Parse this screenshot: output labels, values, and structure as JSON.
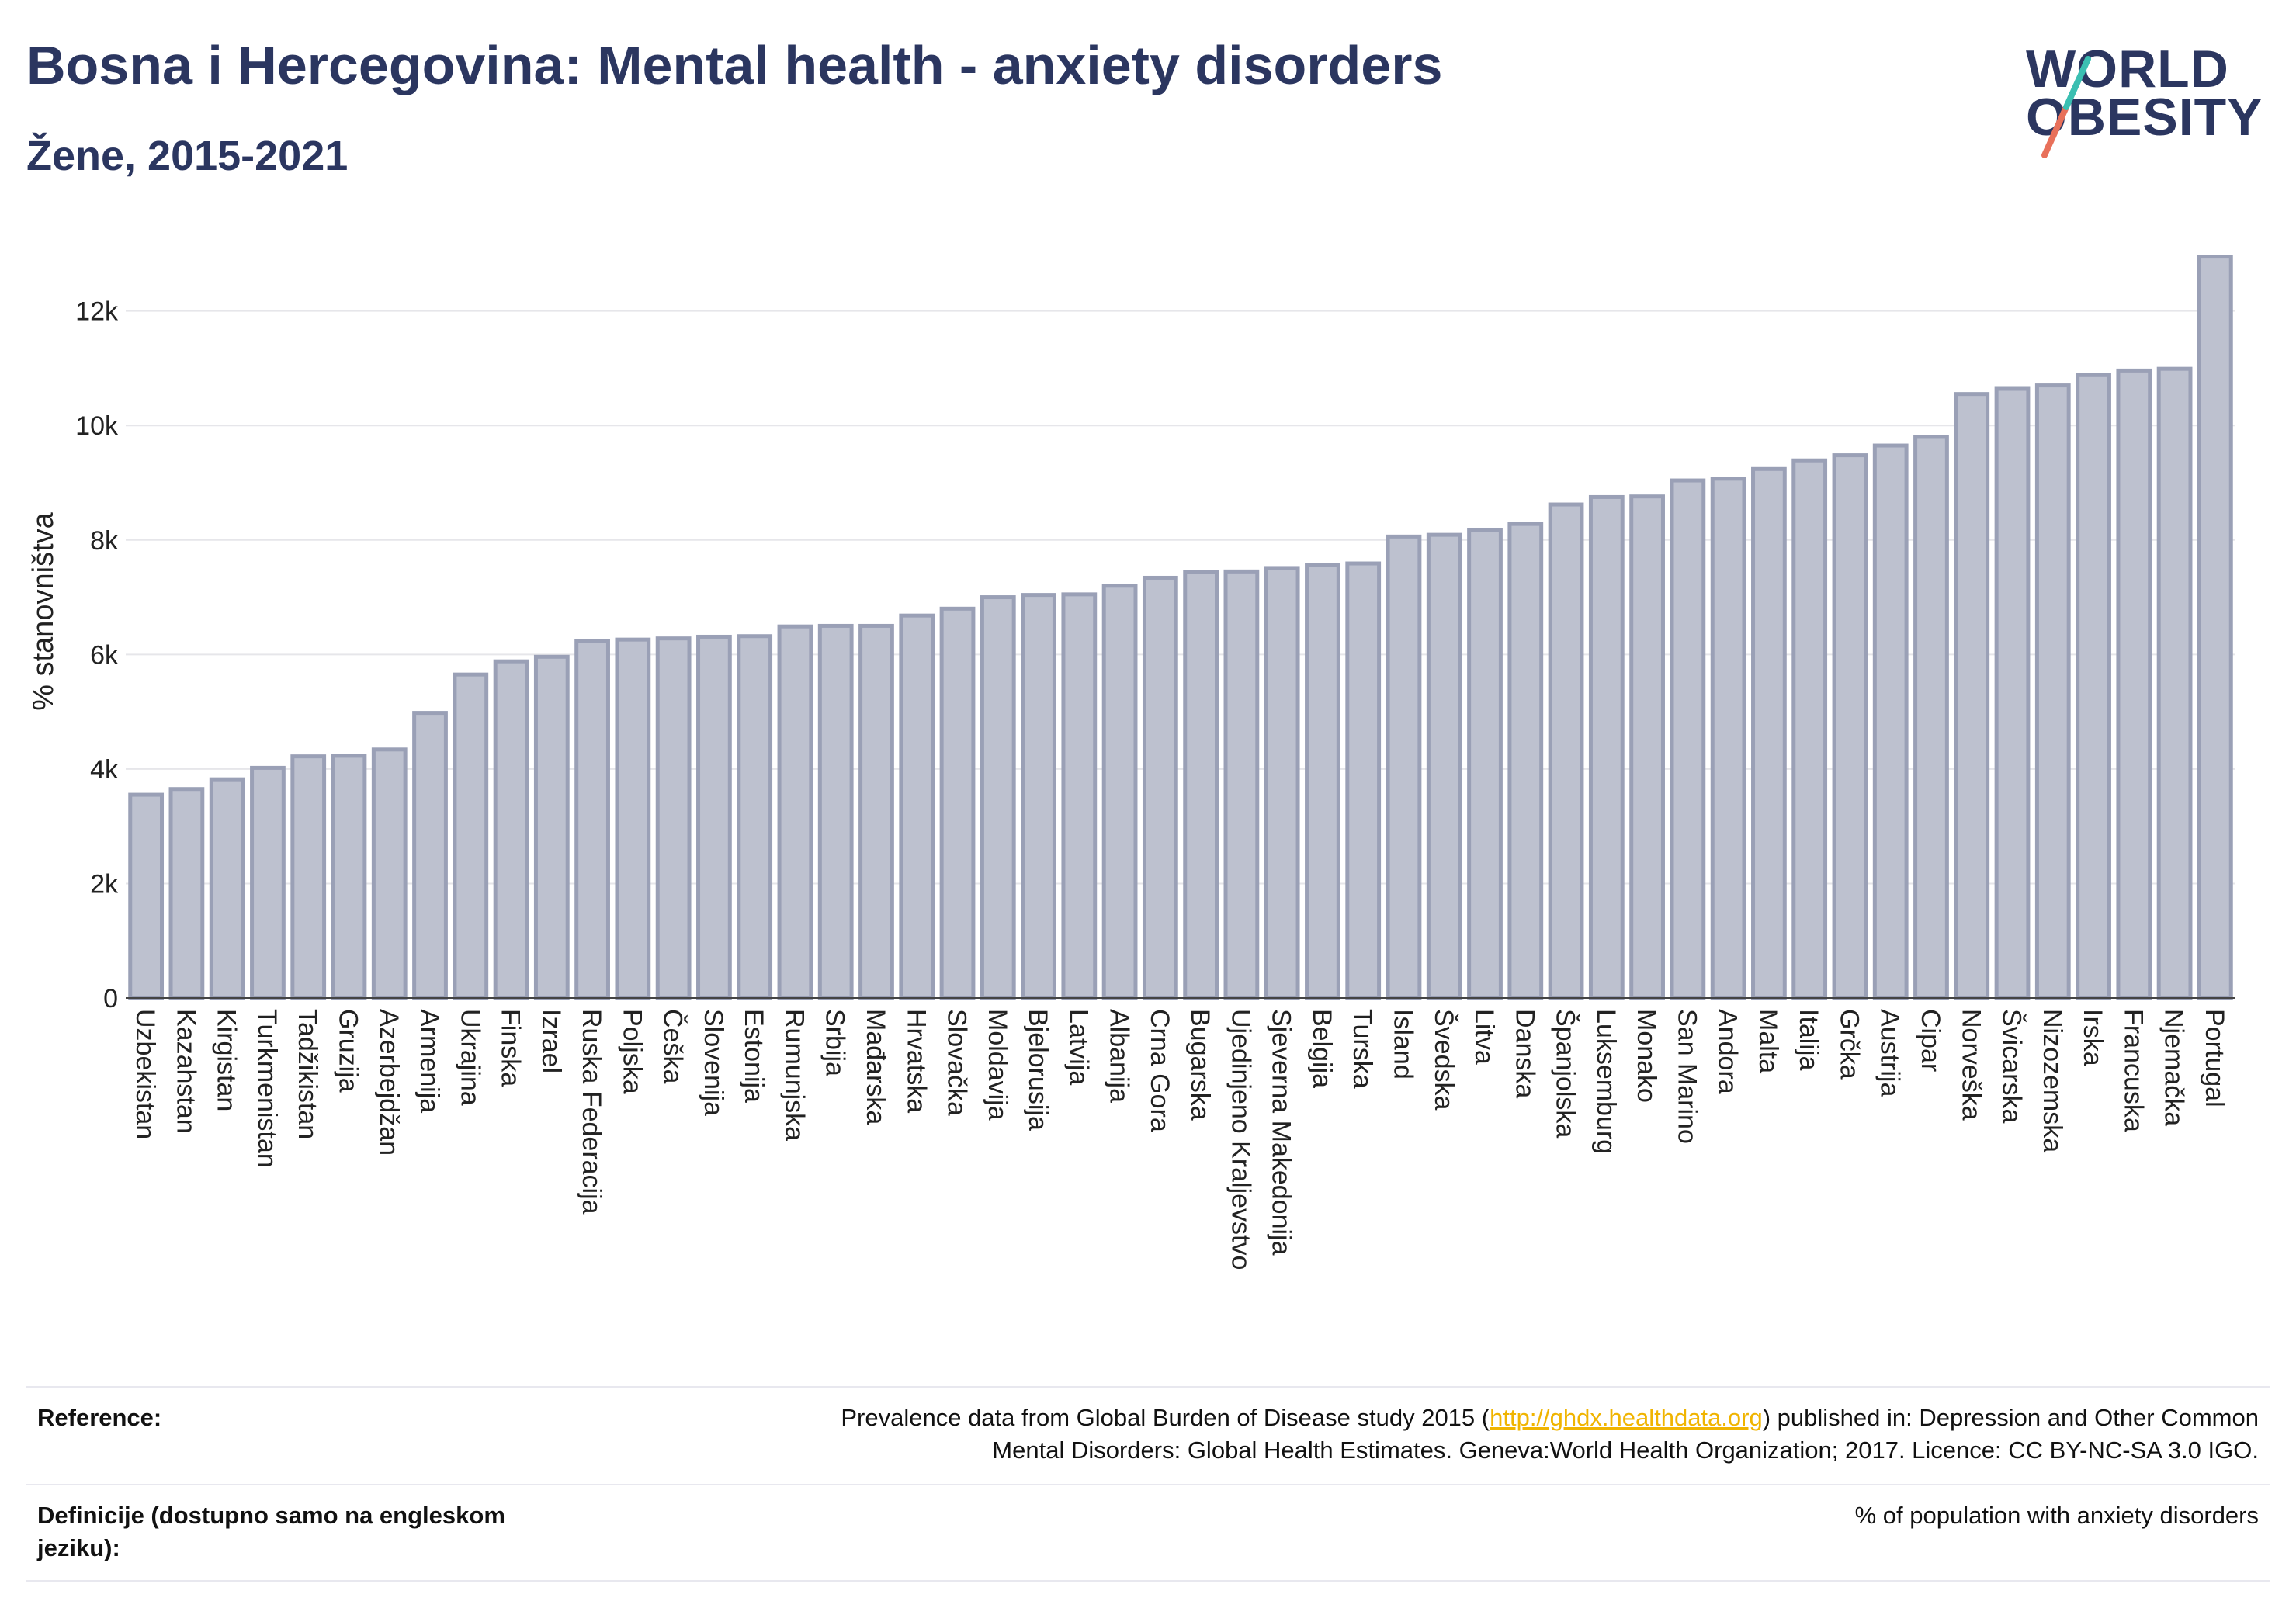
{
  "header": {
    "title": "Bosna i Hercegovina: Mental health - anxiety disorders",
    "subtitle": "Žene, 2015-2021"
  },
  "logo": {
    "line1": "WORLD",
    "line2": "OBESITY",
    "accent_colors": [
      "#e8705a",
      "#3bbfb2"
    ]
  },
  "colors": {
    "bar_fill": "#bdc1cf",
    "bar_stroke": "#9aa0b6",
    "grid": "#e6e6ea",
    "title": "#2b3660"
  },
  "chart_data": {
    "type": "bar",
    "ylabel": "% stanovništva",
    "ylim": [
      0,
      13500
    ],
    "yticks": [
      0,
      2000,
      4000,
      6000,
      8000,
      10000,
      12000
    ],
    "ytick_labels": [
      "0",
      "2k",
      "4k",
      "6k",
      "8k",
      "10k",
      "12k"
    ],
    "grid": true,
    "categories": [
      "Uzbekistan",
      "Kazahstan",
      "Kirgistan",
      "Turkmenistan",
      "Tadžikistan",
      "Gruzija",
      "Azerbejdžan",
      "Armenija",
      "Ukrajina",
      "Finska",
      "Izrael",
      "Ruska Federacija",
      "Poljska",
      "Češka",
      "Slovenija",
      "Estonija",
      "Rumunjska",
      "Srbija",
      "Mađarska",
      "Hrvatska",
      "Slovačka",
      "Moldavija",
      "Bjelorusija",
      "Latvija",
      "Albanija",
      "Crna Gora",
      "Bugarska",
      "Ujedinjeno Kraljevstvo",
      "Sjeverna Makedonija",
      "Belgija",
      "Turska",
      "Island",
      "Švedska",
      "Litva",
      "Danska",
      "Španjolska",
      "Luksemburg",
      "Monako",
      "San Marino",
      "Andora",
      "Malta",
      "Italija",
      "Grčka",
      "Austrija",
      "Cipar",
      "Norveška",
      "Švicarska",
      "Nizozemska",
      "Irska",
      "Francuska",
      "Njemačka",
      "Portugal"
    ],
    "values": [
      3550,
      3650,
      3820,
      4020,
      4220,
      4230,
      4340,
      4980,
      5650,
      5880,
      5960,
      6240,
      6260,
      6280,
      6310,
      6320,
      6490,
      6500,
      6500,
      6680,
      6800,
      7000,
      7040,
      7050,
      7200,
      7340,
      7440,
      7450,
      7510,
      7570,
      7590,
      8060,
      8090,
      8180,
      8280,
      8620,
      8750,
      8760,
      9040,
      9070,
      9240,
      9390,
      9480,
      9650,
      9800,
      10550,
      10640,
      10700,
      10880,
      10960,
      10990,
      12950
    ]
  },
  "footer": {
    "reference_label": "Reference:",
    "reference_text_1": "Prevalence data from Global Burden of Disease study 2015 (",
    "reference_link": "http://ghdx.healthdata.org",
    "reference_text_2": ") published in: Depression and Other Common",
    "reference_text_3": "Mental Disorders: Global Health Estimates. Geneva:World Health Organization; 2017. Licence: CC BY-NC-SA 3.0 IGO.",
    "definition_label": "Definicije (dostupno samo na engleskom jeziku):",
    "definition_text": "% of population with anxiety disorders"
  }
}
